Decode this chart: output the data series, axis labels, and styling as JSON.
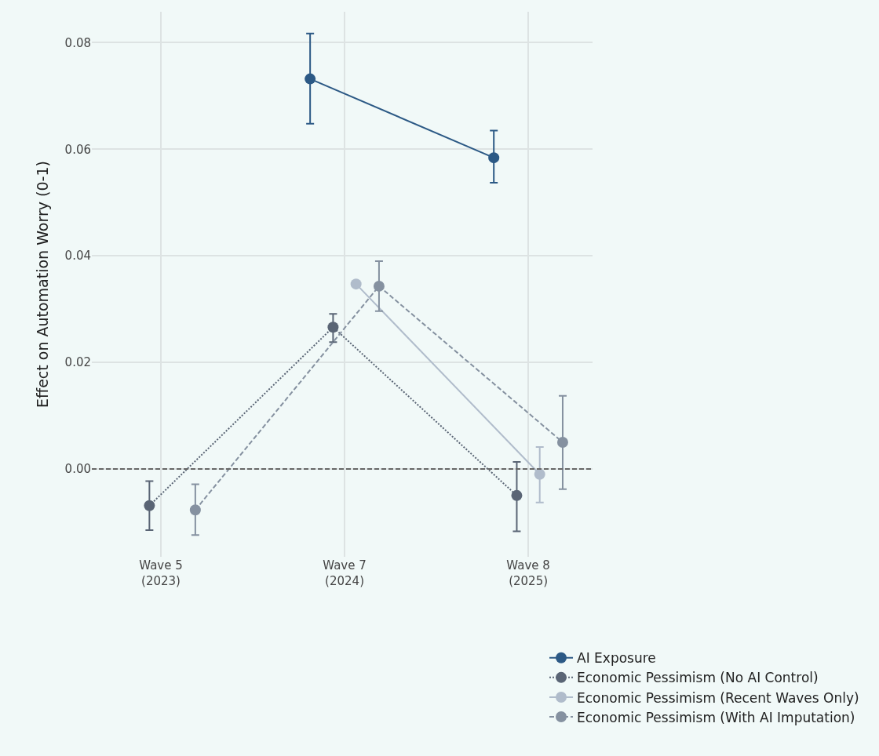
{
  "chart_data": {
    "type": "line",
    "ylabel": "Effect on Automation Worry (0-1)",
    "categories": [
      "Wave 5\n(2023)",
      "Wave 7\n(2024)",
      "Wave 8\n(2025)"
    ],
    "series": [
      {
        "name": "AI Exposure",
        "color": "#2c5985",
        "line_style": "solid",
        "values": [
          null,
          0.0732,
          0.0584
        ],
        "errors": [
          null,
          [
            0.0648,
            0.0817
          ],
          [
            0.0537,
            0.0635
          ]
        ]
      },
      {
        "name": "Economic Pessimism (No AI Control)",
        "color": "#5a6575",
        "line_style": "dotted",
        "values": [
          -0.0069,
          0.0266,
          -0.005
        ],
        "errors": [
          [
            -0.0115,
            -0.0023
          ],
          [
            0.0238,
            0.0291
          ],
          [
            -0.0117,
            0.0013
          ]
        ]
      },
      {
        "name": "Economic Pessimism (Recent Waves Only)",
        "color": "#b0bccb",
        "line_style": "solid",
        "values": [
          null,
          0.0347,
          -0.001
        ],
        "errors": [
          null,
          null,
          [
            -0.0063,
            0.0041
          ]
        ]
      },
      {
        "name": "Economic Pessimism (With AI Imputation)",
        "color": "#8591a0",
        "line_style": "dashed",
        "values": [
          -0.0077,
          0.0343,
          0.005
        ],
        "errors": [
          [
            -0.0124,
            -0.0029
          ],
          [
            0.0296,
            0.039
          ],
          [
            -0.0038,
            0.0137
          ]
        ]
      }
    ],
    "ylim": [
      -0.0165,
      0.0858
    ],
    "yticks": [
      {
        "value": 0,
        "label": "0.00"
      },
      0.02,
      0.04,
      0.06,
      0.08
    ],
    "ref_lines": [
      {
        "axis": "y",
        "value": 0,
        "color": "#666666",
        "line_style": "dashed"
      }
    ],
    "grid": true,
    "legend": "bottom right",
    "marker": "circle"
  }
}
